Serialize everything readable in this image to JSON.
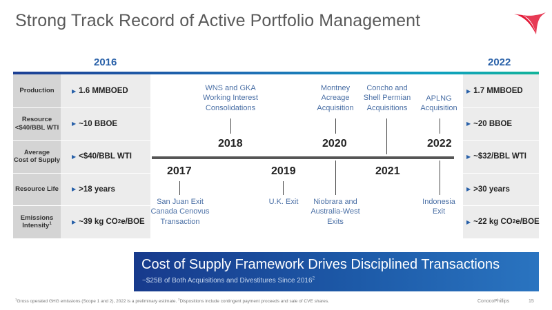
{
  "page_title": "Strong Track Record of Active Portfolio Management",
  "logo": {
    "name": "conocophillips-logo",
    "colors": [
      "#e31937",
      "#2860a8"
    ]
  },
  "column_heads": {
    "left_year": "2016",
    "right_year": "2022"
  },
  "rows": [
    {
      "label": "Production",
      "left": "1.6 MMBOED",
      "right": "1.7 MMBOED"
    },
    {
      "label_line1": "Resource",
      "label_line2": "<$40/BBL WTI",
      "left": "~10 BBOE",
      "right": "~20 BBOE"
    },
    {
      "label_line1": "Average",
      "label_line2": "Cost of Supply",
      "left": "<$40/BBL WTI",
      "right": "~$32/BBL WTI"
    },
    {
      "label": "Resource Life",
      "left": ">18 years",
      "right": ">30 years"
    },
    {
      "label_line1": "Emissions",
      "label_line2": "Intensity",
      "label_sup": "1",
      "left_pre": "~39 kg CO",
      "left_sub": "2",
      "left_post": "e/BOE",
      "right_pre": "~22 kg CO",
      "right_sub": "2",
      "right_post": "e/BOE"
    }
  ],
  "timeline": {
    "years_above": [
      "2018",
      "2020",
      "2022"
    ],
    "years_below": [
      "2017",
      "2019",
      "2021"
    ],
    "events_above": [
      {
        "line1": "WNS and GKA",
        "line2": "Working Interest",
        "line3": "Consolidations"
      },
      {
        "line1": "Montney",
        "line2": "Acreage",
        "line3": "Acquisition"
      },
      {
        "line1": "Concho and",
        "line2": "Shell Permian",
        "line3": "Acquisitions"
      },
      {
        "line1": "APLNG",
        "line2": "Acquisition"
      }
    ],
    "events_below": [
      {
        "line1": "San Juan Exit",
        "line2": "Canada Cenovus",
        "line3": "Transaction"
      },
      {
        "line1": "U.K. Exit"
      },
      {
        "line1": "Niobrara and",
        "line2": "Australia-West",
        "line3": "Exits"
      },
      {
        "line1": "Indonesia",
        "line2": "Exit"
      }
    ]
  },
  "banner": {
    "title": "Cost of Supply Framework Drives Disciplined Transactions",
    "subtitle": "~$25B of Both Acquisitions and Divestitures Since 2016",
    "subtitle_sup": "2"
  },
  "footer": {
    "footnote_sup1": "1",
    "footnote1": "Gross operated GHG emissions (Scope 1 and 2), 2022 is a preliminary estimate.",
    "footnote_sup2": "2",
    "footnote2": "Dispositions include contingent payment proceeds and sale of CVE shares.",
    "brand": "ConocoPhillips",
    "page_number": "15"
  },
  "colors": {
    "accent_blue": "#2860a8",
    "logo_red": "#e31937",
    "banner_blue": "#1d5aa8",
    "event_text": "#4a6fa5"
  }
}
